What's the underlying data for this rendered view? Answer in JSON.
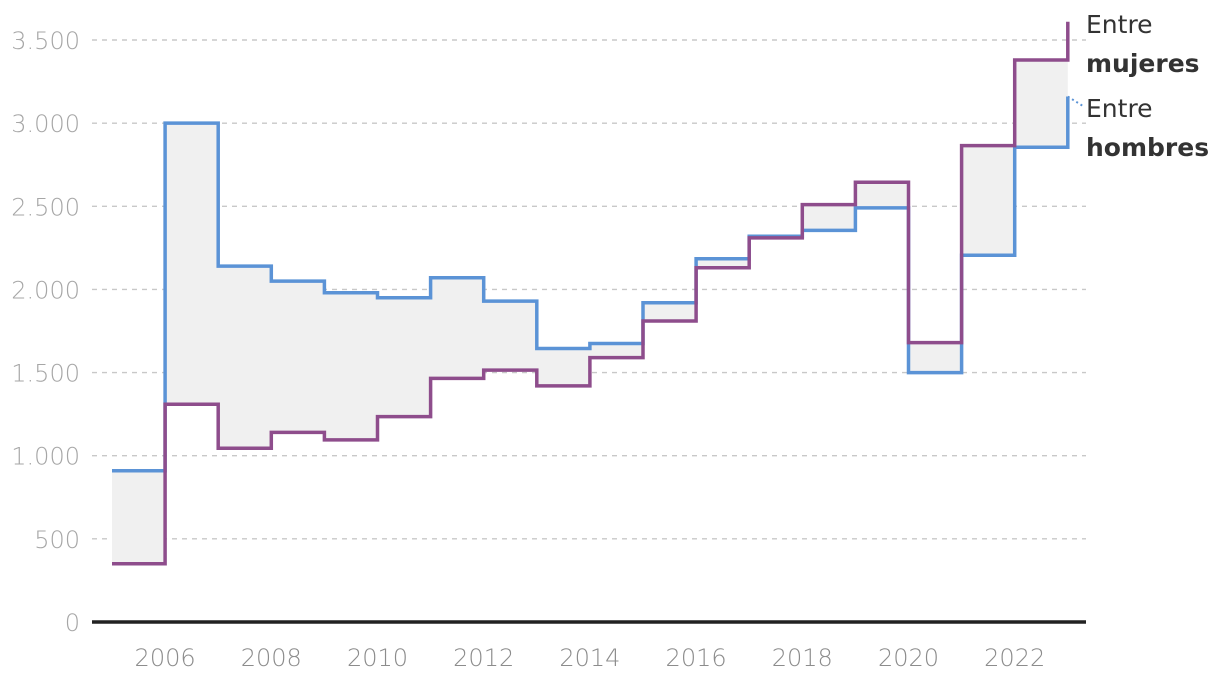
{
  "chart_data": {
    "type": "line",
    "step": true,
    "x": [
      2005,
      2006,
      2007,
      2008,
      2009,
      2010,
      2011,
      2012,
      2013,
      2014,
      2015,
      2016,
      2017,
      2018,
      2019,
      2020,
      2021,
      2022,
      2023
    ],
    "series": [
      {
        "name": "Entre hombres",
        "color": "#5b93d6",
        "values": [
          910,
          3000,
          2140,
          2050,
          1980,
          1950,
          2070,
          1930,
          1645,
          1675,
          1920,
          2185,
          2320,
          2355,
          2490,
          1500,
          2205,
          2855,
          3160
        ]
      },
      {
        "name": "Entre mujeres",
        "color": "#8e4d8c",
        "values": [
          350,
          1310,
          1045,
          1140,
          1095,
          1235,
          1465,
          1515,
          1420,
          1590,
          1810,
          2130,
          2310,
          2510,
          2645,
          1680,
          2865,
          3380,
          3610
        ]
      }
    ],
    "fill_between": "#f0f0f0",
    "ylim": [
      0,
      3500
    ],
    "yticks": [
      0,
      500,
      1000,
      1500,
      2000,
      2500,
      3000,
      3500
    ],
    "ytick_labels": [
      "0",
      "500",
      "1.000",
      "1.500",
      "2.000",
      "2.500",
      "3.000",
      "3.500"
    ],
    "xticks": [
      2006,
      2008,
      2010,
      2012,
      2014,
      2016,
      2018,
      2020,
      2022
    ],
    "xtick_labels": [
      "2006",
      "2008",
      "2010",
      "2012",
      "2014",
      "2016",
      "2018",
      "2020",
      "2022"
    ],
    "grid": true,
    "legend_placement": "right"
  },
  "legend": {
    "mujeres_line1": "Entre",
    "mujeres_line2": "mujeres",
    "hombres_line1": "Entre",
    "hombres_line2": "hombres"
  }
}
